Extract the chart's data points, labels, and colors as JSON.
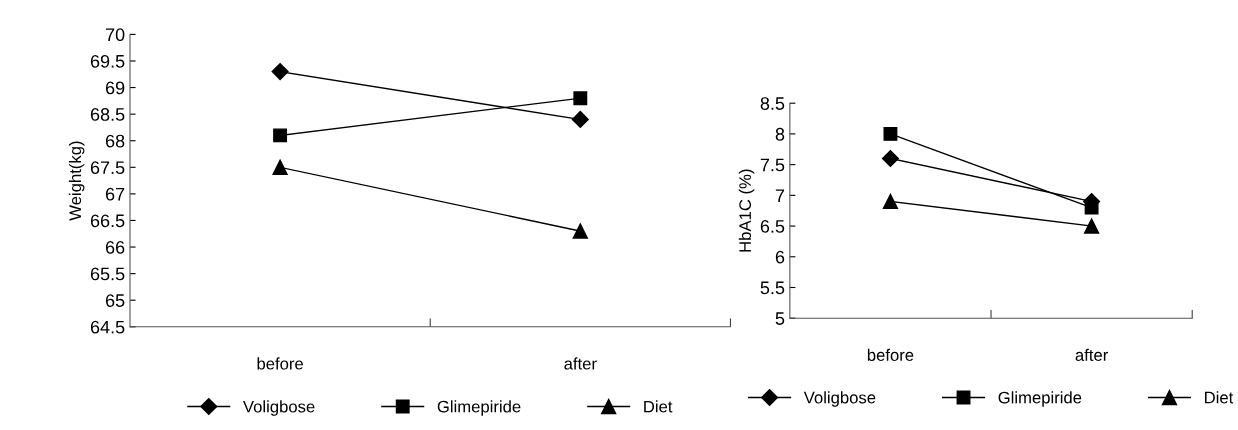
{
  "chart_data": [
    {
      "type": "line",
      "ylabel": "Weight(kg)",
      "categories": [
        "before",
        "after"
      ],
      "series": [
        {
          "name": "Voligbose",
          "color": "#000000",
          "marker": "diamond",
          "values": [
            69.3,
            68.4
          ]
        },
        {
          "name": "Glimepiride",
          "color": "#000000",
          "marker": "square",
          "values": [
            68.1,
            68.8
          ]
        },
        {
          "name": "Diet",
          "color": "#000000",
          "marker": "triangle",
          "values": [
            67.5,
            66.3
          ]
        }
      ],
      "ylim": [
        64.5,
        70
      ],
      "yticks": [
        64.5,
        65,
        65.5,
        66,
        66.5,
        67,
        67.5,
        68,
        68.5,
        69,
        69.5,
        70
      ],
      "grid": false,
      "legend": "bottom",
      "line_style": "solid"
    },
    {
      "type": "line",
      "ylabel": "HbA1C (%)",
      "categories": [
        "before",
        "after"
      ],
      "series": [
        {
          "name": "Voligbose",
          "color": "#000000",
          "marker": "diamond",
          "values": [
            7.6,
            6.9
          ]
        },
        {
          "name": "Glimepiride",
          "color": "#000000",
          "marker": "square",
          "values": [
            8.0,
            6.8
          ]
        },
        {
          "name": "Diet",
          "color": "#000000",
          "marker": "triangle",
          "values": [
            6.9,
            6.5
          ]
        }
      ],
      "ylim": [
        5,
        8.5
      ],
      "yticks": [
        5,
        5.5,
        6,
        6.5,
        7,
        7.5,
        8,
        8.5
      ],
      "grid": false,
      "legend": "bottom",
      "line_style": "solid"
    }
  ]
}
